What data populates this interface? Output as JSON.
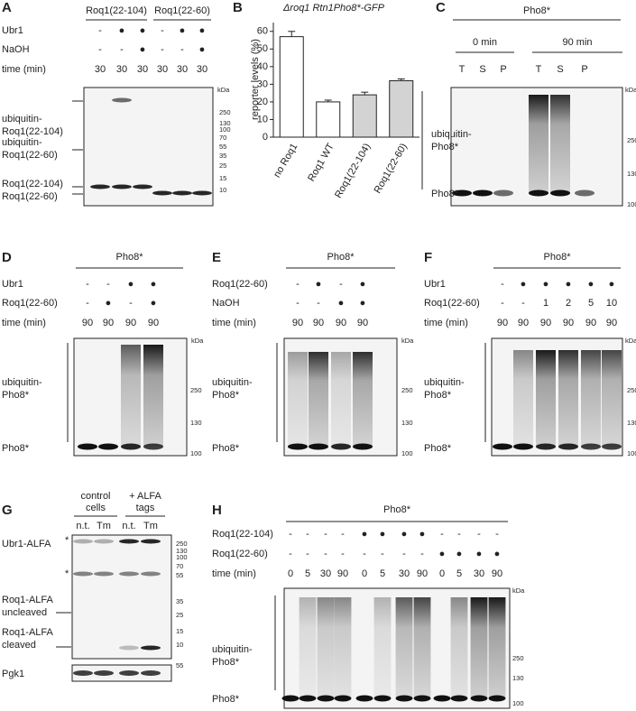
{
  "chart_data": {
    "type": "bar",
    "letter": "B",
    "title": "Δroq1 Rtn1Pho8*-GFP",
    "y_label": "reporter levels (%)",
    "categories": [
      "no Roq1",
      "Roq1 WT",
      "Roq1(22-104)",
      "Roq1(22-60)"
    ],
    "values": [
      57,
      20,
      24,
      32
    ],
    "errors": [
      3,
      1,
      1.5,
      1
    ],
    "colors": [
      "#ffffff",
      "#ffffff",
      "#d3d3d3",
      "#d3d3d3"
    ],
    "ylim": [
      0,
      65
    ],
    "yticks": [
      0,
      10,
      20,
      30,
      40,
      50,
      60
    ]
  },
  "panels": [
    {
      "letter": "A",
      "headers": [
        [
          "Roq1(22-104)"
        ],
        [
          "Roq1(22-60)"
        ]
      ],
      "rows": [
        {
          "label": "Ubr1",
          "cells": [
            "-",
            "●",
            "●",
            "-",
            "●",
            "●"
          ]
        },
        {
          "label": "NaOH",
          "cells": [
            "-",
            "-",
            "●",
            "-",
            "-",
            "●"
          ]
        },
        {
          "label": "time (min)",
          "cells": [
            "30",
            "30",
            "30",
            "30",
            "30",
            "30"
          ]
        }
      ],
      "band_labels": [
        [
          "ubiquitin-",
          "Roq1(22-104)"
        ],
        [
          "ubiquitin-",
          "Roq1(22-60)"
        ],
        [
          "Roq1(22-104)"
        ],
        [
          "Roq1(22-60)"
        ]
      ],
      "kda": "kDa",
      "markers": [
        "250",
        "130",
        "100",
        "70",
        "55",
        "35",
        "25",
        "15",
        "10"
      ]
    },
    {
      "letter": "C",
      "headers": [
        [
          "Pho8*"
        ]
      ],
      "subheaders": [
        "0 min",
        "90 min"
      ],
      "rows": [
        {
          "cells": [
            "T",
            "S",
            "P",
            "T",
            "S",
            "P"
          ]
        }
      ],
      "band_labels": [
        [
          "ubiquitin-",
          "Pho8*"
        ],
        [
          "Pho8*"
        ]
      ],
      "kda": "kDa",
      "markers": [
        "250",
        "130",
        "100"
      ]
    },
    {
      "letter": "D",
      "headers": [
        [
          "Pho8*"
        ]
      ],
      "rows": [
        {
          "label": "Ubr1",
          "cells": [
            "-",
            "-",
            "●",
            "●"
          ]
        },
        {
          "label": "Roq1(22-60)",
          "cells": [
            "-",
            "●",
            "-",
            "●"
          ]
        },
        {
          "label": "time (min)",
          "cells": [
            "90",
            "90",
            "90",
            "90"
          ]
        }
      ],
      "band_labels": [
        [
          "ubiquitin-",
          "Pho8*"
        ],
        [
          "Pho8*"
        ]
      ],
      "kda": "kDa",
      "markers": [
        "250",
        "130",
        "100"
      ]
    },
    {
      "letter": "E",
      "headers": [
        [
          "Pho8*"
        ]
      ],
      "rows": [
        {
          "label": "Roq1(22-60)",
          "cells": [
            "-",
            "●",
            "-",
            "●"
          ]
        },
        {
          "label": "NaOH",
          "cells": [
            "-",
            "-",
            "●",
            "●"
          ]
        },
        {
          "label": "time (min)",
          "cells": [
            "90",
            "90",
            "90",
            "90"
          ]
        }
      ],
      "band_labels": [
        [
          "ubiquitin-",
          "Pho8*"
        ],
        [
          "Pho8*"
        ]
      ],
      "kda": "kDa",
      "markers": [
        "250",
        "130",
        "100"
      ]
    },
    {
      "letter": "F",
      "headers": [
        [
          "Pho8*"
        ]
      ],
      "rows": [
        {
          "label": "Ubr1",
          "cells": [
            "-",
            "●",
            "●",
            "●",
            "●",
            "●"
          ]
        },
        {
          "label": "Roq1(22-60)",
          "cells": [
            "-",
            "-",
            "1",
            "2",
            "5",
            "10"
          ]
        },
        {
          "label": "time (min)",
          "cells": [
            "90",
            "90",
            "90",
            "90",
            "90",
            "90"
          ]
        }
      ],
      "band_labels": [
        [
          "ubiquitin-",
          "Pho8*"
        ],
        [
          "Pho8*"
        ]
      ],
      "kda": "kDa",
      "markers": [
        "250",
        "130",
        "100"
      ]
    },
    {
      "letter": "G",
      "headers": [
        [
          "control",
          "cells"
        ],
        [
          "+ ALFA",
          "tags"
        ]
      ],
      "rows": [
        {
          "cells": [
            "n.t.",
            "Tm",
            "n.t.",
            "Tm"
          ]
        }
      ],
      "band_labels": [
        [
          "Ubr1-ALFA"
        ],
        [
          "Roq1-ALFA",
          "uncleaved"
        ],
        [
          "Roq1-ALFA",
          "cleaved"
        ],
        [
          "Pgk1"
        ]
      ],
      "asterisks": [
        "*",
        "*"
      ],
      "markers": [
        "250",
        "130",
        "100",
        "70",
        "55",
        "35",
        "25",
        "15",
        "10"
      ],
      "loading_markers": [
        "55"
      ]
    },
    {
      "letter": "H",
      "headers": [
        [
          "Pho8*"
        ]
      ],
      "rows": [
        {
          "label": "Roq1(22-104)",
          "cells": [
            "-",
            "-",
            "-",
            "-",
            "●",
            "●",
            "●",
            "●",
            "-",
            "-",
            "-",
            "-"
          ]
        },
        {
          "label": "Roq1(22-60)",
          "cells": [
            "-",
            "-",
            "-",
            "-",
            "-",
            "-",
            "-",
            "-",
            "●",
            "●",
            "●",
            "●"
          ]
        },
        {
          "label": "time (min)",
          "cells": [
            "0",
            "5",
            "30",
            "90",
            "0",
            "5",
            "30",
            "90",
            "0",
            "5",
            "30",
            "90"
          ]
        }
      ],
      "band_labels": [
        [
          "ubiquitin-",
          "Pho8*"
        ],
        [
          "Pho8*"
        ]
      ],
      "kda": "kDa",
      "markers": [
        "250",
        "130",
        "100"
      ]
    }
  ]
}
